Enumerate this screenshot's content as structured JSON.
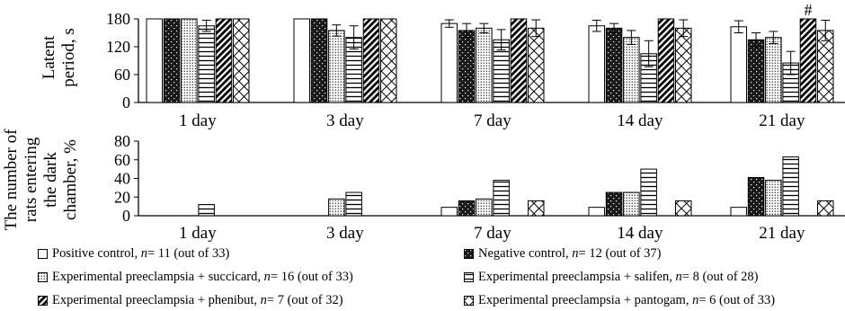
{
  "chart_data": [
    {
      "type": "bar",
      "categories": [
        "1 day",
        "3 day",
        "7 day",
        "14 day",
        "21 day"
      ],
      "ylabel": "Latent period, s",
      "ylim": [
        0,
        180
      ],
      "yticks": [
        0,
        60,
        120,
        180
      ],
      "error_bars": true,
      "annotations": [
        {
          "category": "21 day",
          "series": "Experimental preeclampsia + phenibut",
          "text": "#"
        }
      ],
      "series": [
        {
          "name": "Positive control",
          "values": [
            180,
            180,
            170,
            165,
            163
          ],
          "errors": [
            0,
            0,
            8,
            12,
            13
          ]
        },
        {
          "name": "Negative control",
          "values": [
            180,
            180,
            155,
            160,
            135
          ],
          "errors": [
            0,
            0,
            15,
            10,
            15
          ]
        },
        {
          "name": "Experimental preeclampsia + succicard",
          "values": [
            180,
            155,
            160,
            140,
            140
          ],
          "errors": [
            0,
            12,
            10,
            15,
            13
          ]
        },
        {
          "name": "Experimental preeclampsia + salifen",
          "values": [
            165,
            140,
            135,
            105,
            85
          ],
          "errors": [
            12,
            25,
            22,
            28,
            25
          ]
        },
        {
          "name": "Experimental preeclampsia + phenibut",
          "values": [
            180,
            180,
            180,
            180,
            180
          ],
          "errors": [
            0,
            0,
            0,
            0,
            0
          ]
        },
        {
          "name": "Experimental preeclampsia + pantogam",
          "values": [
            180,
            180,
            160,
            160,
            155
          ],
          "errors": [
            0,
            0,
            18,
            18,
            22
          ]
        }
      ]
    },
    {
      "type": "bar",
      "categories": [
        "1 day",
        "3 day",
        "7 day",
        "14 day",
        "21 day"
      ],
      "ylabel": "The number of rats entering the dark chamber, %",
      "ylim": [
        0,
        80
      ],
      "yticks": [
        0,
        20,
        40,
        60,
        80
      ],
      "series": [
        {
          "name": "Positive control",
          "values": [
            0,
            0,
            9,
            9,
            9
          ]
        },
        {
          "name": "Negative control",
          "values": [
            0,
            0,
            16,
            25,
            41
          ]
        },
        {
          "name": "Experimental preeclampsia + succicard",
          "values": [
            0,
            18,
            18,
            25,
            38
          ]
        },
        {
          "name": "Experimental preeclampsia + salifen",
          "values": [
            12,
            25,
            38,
            50,
            63
          ]
        },
        {
          "name": "Experimental preeclampsia + phenibut",
          "values": [
            0,
            0,
            0,
            0,
            0
          ]
        },
        {
          "name": "Experimental preeclampsia + pantogam",
          "values": [
            0,
            0,
            16,
            16,
            16
          ]
        }
      ]
    }
  ],
  "top_ylabel_lines": [
    "Latent",
    "period, s"
  ],
  "bottom_ylabel_lines": [
    "The number of",
    "rats entering",
    "the dark",
    "chamber, %"
  ],
  "legend": [
    {
      "pattern": "white",
      "name": "Positive control",
      "n_text": " = 11 (out of 33)"
    },
    {
      "pattern": "black",
      "name": "Negative control",
      "n_text": " = 12 (out of 37)"
    },
    {
      "pattern": "dots",
      "name": "Experimental preeclampsia + succicard",
      "n_text": " = 16 (out of 33)"
    },
    {
      "pattern": "hlines",
      "name": "Experimental preeclampsia + salifen",
      "n_text": " = 8 (out of 28)"
    },
    {
      "pattern": "diag",
      "name": "Experimental preeclampsia + phenibut",
      "n_text": " = 7 (out of 32)"
    },
    {
      "pattern": "cross",
      "name": "Experimental preeclampsia + pantogam",
      "n_text": " = 6 (out of 33)"
    }
  ],
  "n_symbol": "n"
}
